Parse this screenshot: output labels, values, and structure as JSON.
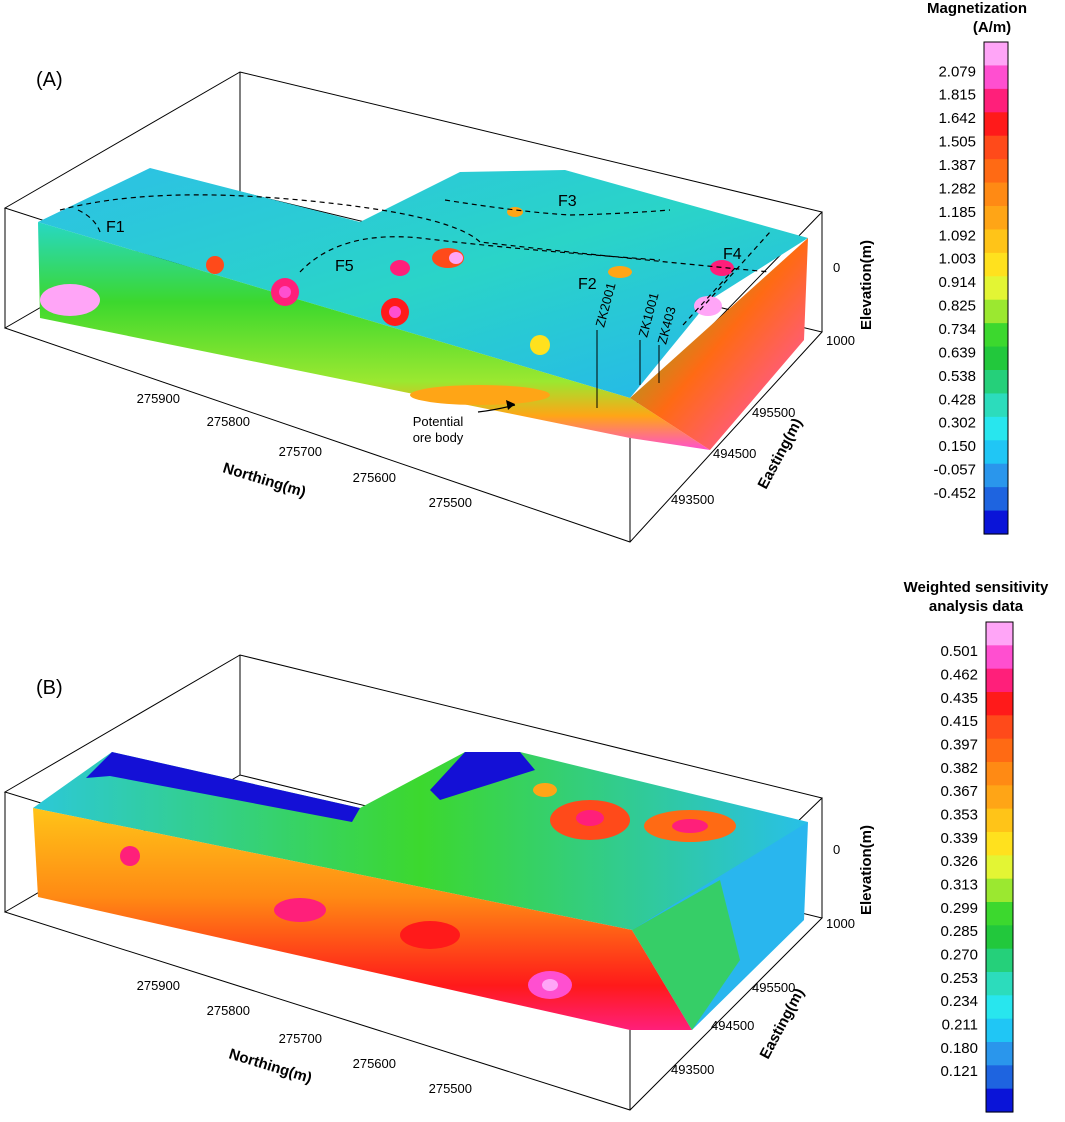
{
  "panels": [
    {
      "label": "(A)",
      "colorbar": {
        "title_lines": [
          "Magnetization",
          "(A/m)"
        ],
        "ticks": [
          "2.079",
          "1.815",
          "1.642",
          "1.505",
          "1.387",
          "1.282",
          "1.185",
          "1.092",
          "1.003",
          "0.914",
          "0.825",
          "0.734",
          "0.639",
          "0.538",
          "0.428",
          "0.302",
          "0.150",
          "-0.057",
          "-0.452"
        ]
      },
      "axes": {
        "northing_label": "Northing(m)",
        "northing_ticks": [
          "275900",
          "275800",
          "275700",
          "275600",
          "275500"
        ],
        "easting_label": "Easting(m)",
        "easting_ticks": [
          "495500",
          "494500",
          "493500"
        ],
        "elevation_label": "Elevation(m)",
        "elevation_ticks": [
          "0",
          "1000"
        ]
      },
      "annotations": {
        "faults": [
          "F1",
          "F2",
          "F3",
          "F4",
          "F5"
        ],
        "boreholes": [
          "ZK2001",
          "ZK1001",
          "ZK403"
        ],
        "ore_body_lines": [
          "Potential",
          "ore body"
        ]
      }
    },
    {
      "label": "(B)",
      "colorbar": {
        "title_lines": [
          "Weighted sensitivity",
          "analysis data"
        ],
        "ticks": [
          "0.501",
          "0.462",
          "0.435",
          "0.415",
          "0.397",
          "0.382",
          "0.367",
          "0.353",
          "0.339",
          "0.326",
          "0.313",
          "0.299",
          "0.285",
          "0.270",
          "0.253",
          "0.234",
          "0.211",
          "0.180",
          "0.121"
        ]
      },
      "axes": {
        "northing_label": "Northing(m)",
        "northing_ticks": [
          "275900",
          "275800",
          "275700",
          "275600",
          "275500"
        ],
        "easting_label": "Easting(m)",
        "easting_ticks": [
          "495500",
          "494500",
          "493500"
        ],
        "elevation_label": "Elevation(m)",
        "elevation_ticks": [
          "0",
          "1000"
        ]
      }
    }
  ],
  "palette": [
    "#ffa5f7",
    "#ff4fd0",
    "#ff1f7a",
    "#ff1a1a",
    "#ff4a1a",
    "#ff6a14",
    "#ff8a14",
    "#ffa516",
    "#ffc418",
    "#ffe11e",
    "#e3f534",
    "#9be830",
    "#3cd82e",
    "#22c83c",
    "#25d07a",
    "#2cdcbc",
    "#28e6ee",
    "#20c6f5",
    "#2a96ec",
    "#1e64e0",
    "#0a14d8"
  ],
  "chart_data": [
    {
      "type": "heatmap",
      "title": "(A)",
      "value_label": "Magnetization (A/m)",
      "legend_levels": [
        2.079,
        1.815,
        1.642,
        1.505,
        1.387,
        1.282,
        1.185,
        1.092,
        1.003,
        0.914,
        0.825,
        0.734,
        0.639,
        0.538,
        0.428,
        0.302,
        0.15,
        -0.057,
        -0.452
      ],
      "value_range": [
        -0.452,
        2.079
      ],
      "x_axis": {
        "label": "Northing(m)",
        "ticks": [
          275900,
          275800,
          275700,
          275600,
          275500
        ]
      },
      "y_axis": {
        "label": "Easting(m)",
        "ticks": [
          495500,
          494500,
          493500
        ]
      },
      "z_axis": {
        "label": "Elevation(m)",
        "ticks": [
          0,
          1000
        ]
      }
    },
    {
      "type": "heatmap",
      "title": "(B)",
      "value_label": "Weighted sensitivity analysis data",
      "legend_levels": [
        0.501,
        0.462,
        0.435,
        0.415,
        0.397,
        0.382,
        0.367,
        0.353,
        0.339,
        0.326,
        0.313,
        0.299,
        0.285,
        0.27,
        0.253,
        0.234,
        0.211,
        0.18,
        0.121
      ],
      "value_range": [
        0.121,
        0.501
      ],
      "x_axis": {
        "label": "Northing(m)",
        "ticks": [
          275900,
          275800,
          275700,
          275600,
          275500
        ]
      },
      "y_axis": {
        "label": "Easting(m)",
        "ticks": [
          495500,
          494500,
          493500
        ]
      },
      "z_axis": {
        "label": "Elevation(m)",
        "ticks": [
          0,
          1000
        ]
      }
    }
  ]
}
